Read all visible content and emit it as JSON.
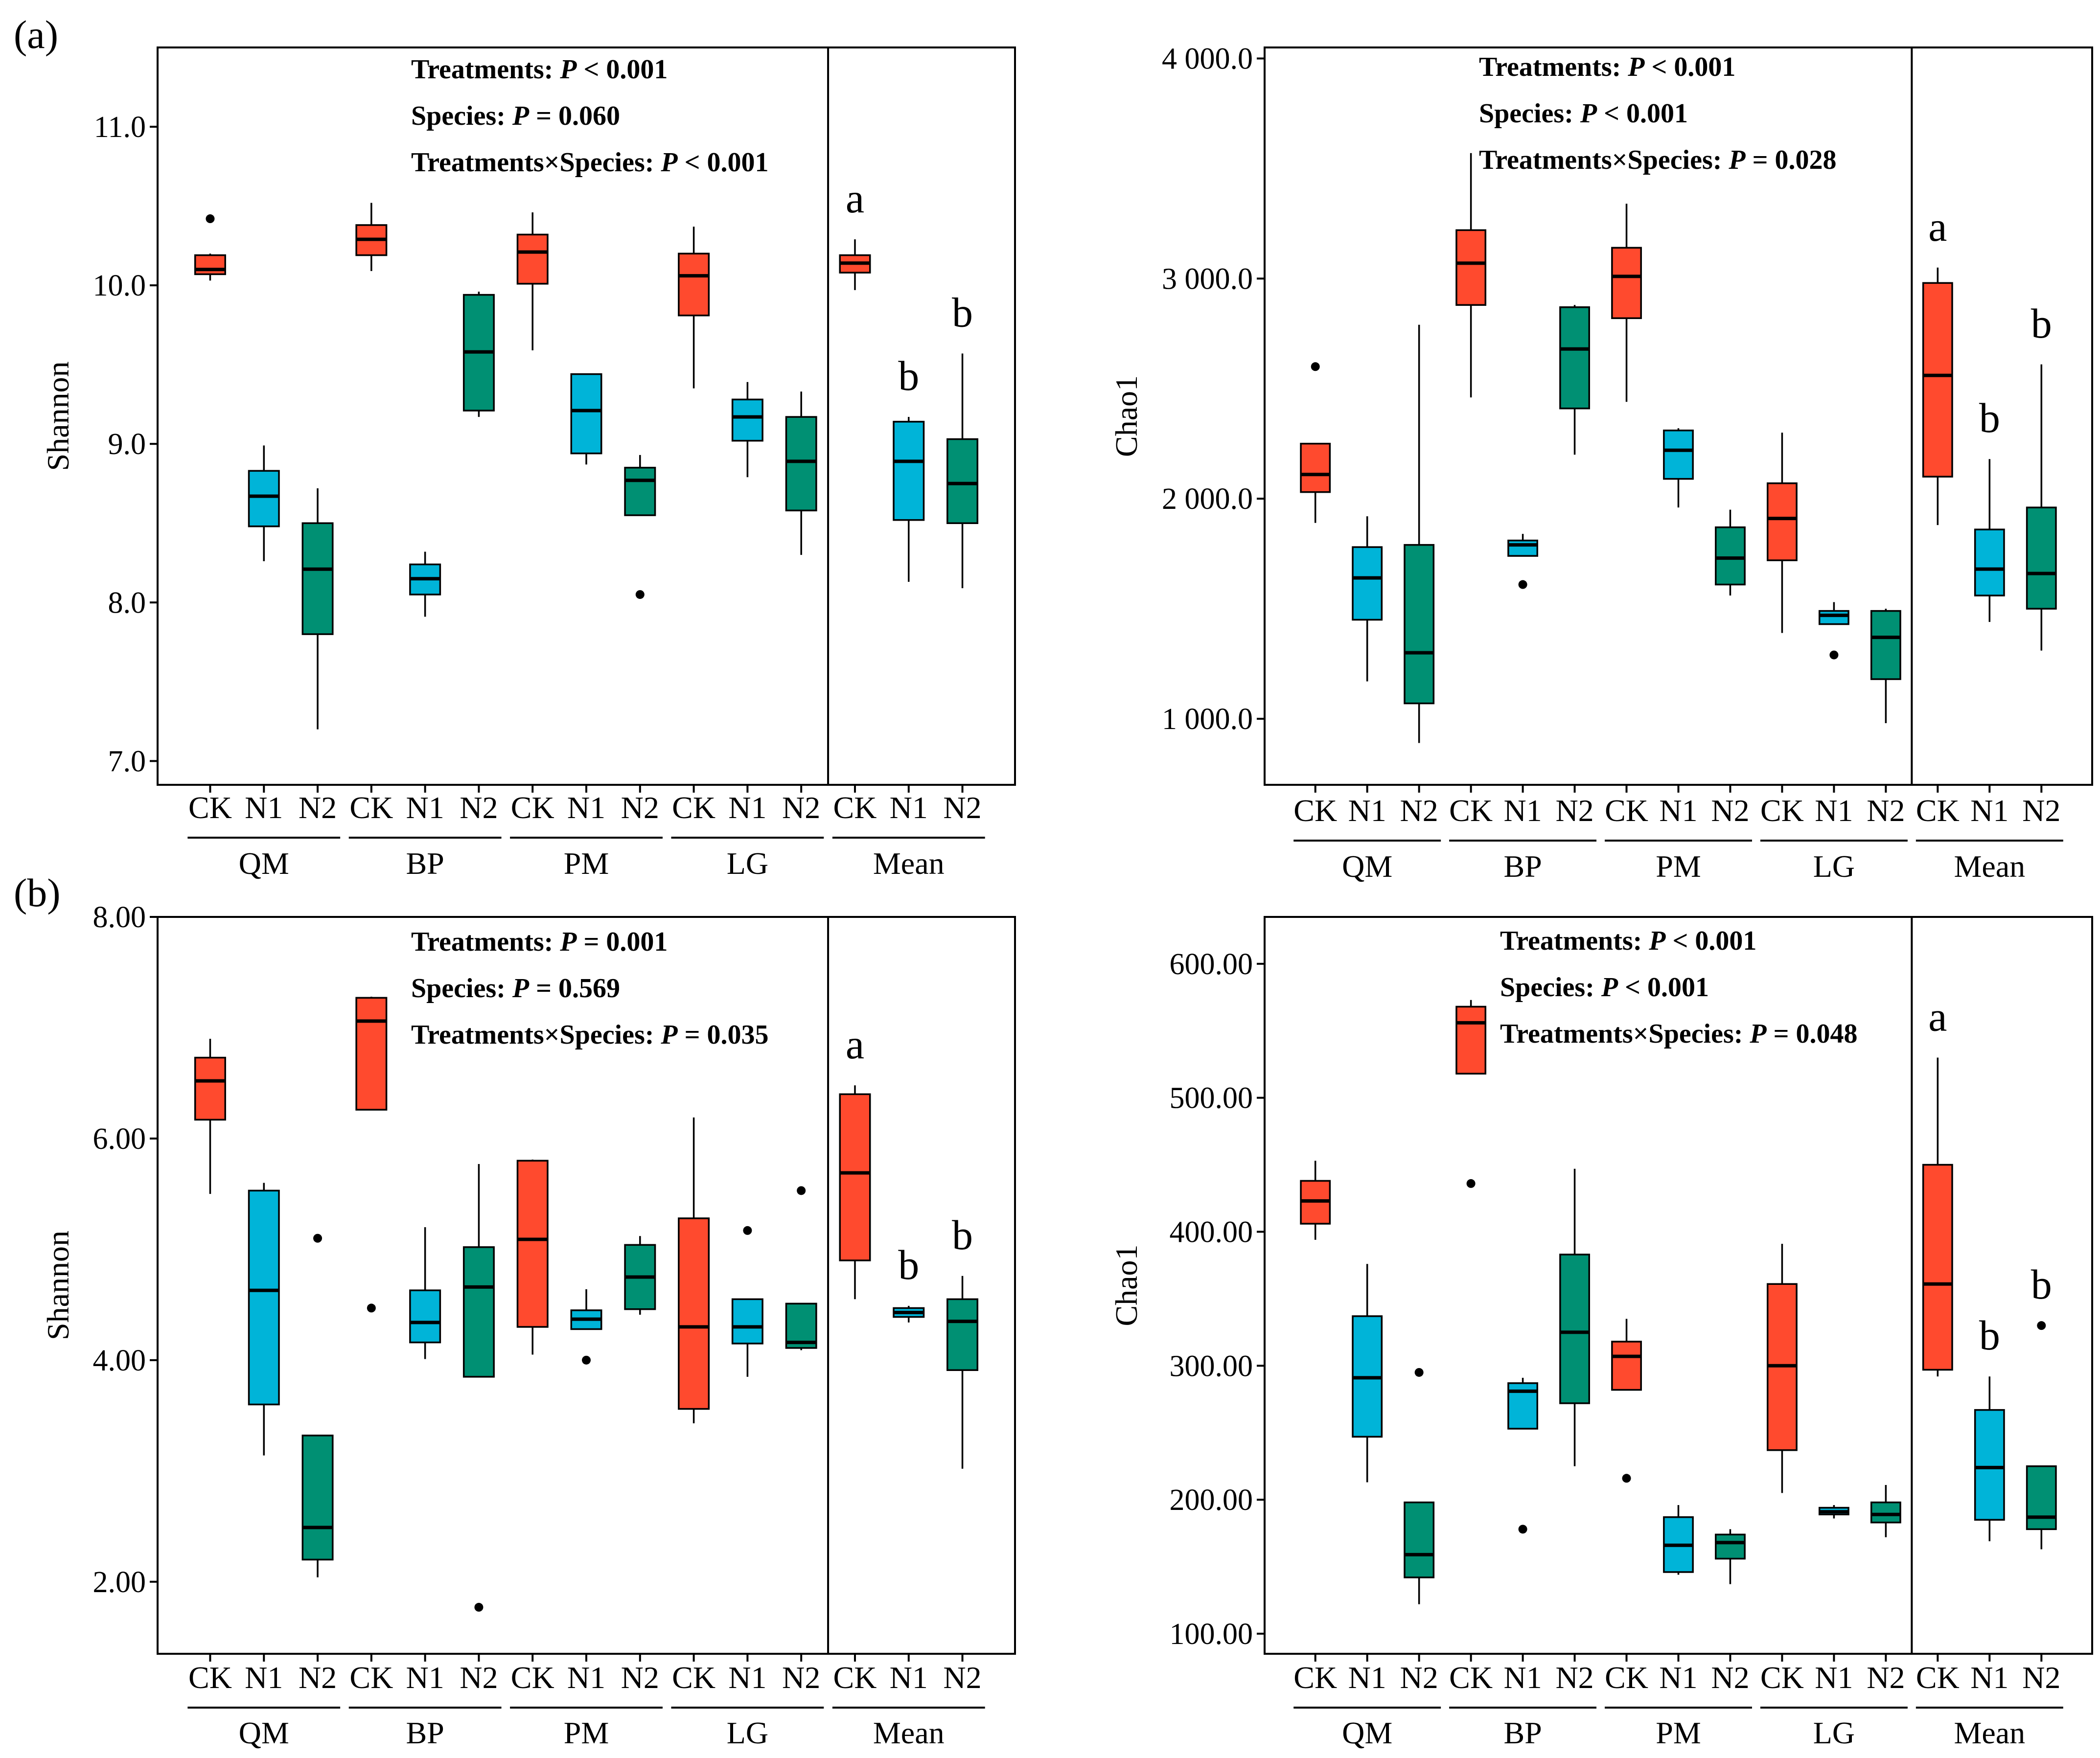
{
  "panel_labels": [
    "(a)",
    "(b)"
  ],
  "colors": {
    "CK": "#FF4A2E",
    "N1": "#00B4D8",
    "N2": "#009073"
  },
  "treatments": [
    "CK",
    "N1",
    "N2"
  ],
  "groups": [
    "QM",
    "BP",
    "PM",
    "LG",
    "Mean"
  ],
  "chart_data": [
    {
      "type": "box",
      "ylabel": "Shannon",
      "ylim": [
        6.85,
        11.5
      ],
      "yticks": [
        7.0,
        8.0,
        9.0,
        10.0,
        11.0
      ],
      "ytick_labels": [
        "7.0",
        "8.0",
        "9.0",
        "10.0",
        "11.0"
      ],
      "stats": [
        {
          "label": "Treatments: ",
          "p": "P",
          "value": " < 0.001"
        },
        {
          "label": "Species: ",
          "p": "P",
          "value": " = 0.060"
        },
        {
          "label": "Treatments×Species: ",
          "p": "P",
          "value": " < 0.001"
        }
      ],
      "boxes": [
        {
          "group": "QM",
          "treatment": "CK",
          "whisker_low": 10.03,
          "q1": 10.07,
          "median": 10.1,
          "q3": 10.19,
          "whisker_high": 10.2,
          "outliers": [
            10.42
          ]
        },
        {
          "group": "QM",
          "treatment": "N1",
          "whisker_low": 8.26,
          "q1": 8.48,
          "median": 8.67,
          "q3": 8.83,
          "whisker_high": 8.99,
          "outliers": []
        },
        {
          "group": "QM",
          "treatment": "N2",
          "whisker_low": 7.2,
          "q1": 7.8,
          "median": 8.21,
          "q3": 8.5,
          "whisker_high": 8.72,
          "outliers": []
        },
        {
          "group": "BP",
          "treatment": "CK",
          "whisker_low": 10.09,
          "q1": 10.19,
          "median": 10.29,
          "q3": 10.38,
          "whisker_high": 10.52,
          "outliers": []
        },
        {
          "group": "BP",
          "treatment": "N1",
          "whisker_low": 7.91,
          "q1": 8.05,
          "median": 8.15,
          "q3": 8.24,
          "whisker_high": 8.32,
          "outliers": []
        },
        {
          "group": "BP",
          "treatment": "N2",
          "whisker_low": 9.17,
          "q1": 9.21,
          "median": 9.58,
          "q3": 9.94,
          "whisker_high": 9.96,
          "outliers": []
        },
        {
          "group": "PM",
          "treatment": "CK",
          "whisker_low": 9.59,
          "q1": 10.01,
          "median": 10.21,
          "q3": 10.32,
          "whisker_high": 10.46,
          "outliers": []
        },
        {
          "group": "PM",
          "treatment": "N1",
          "whisker_low": 8.87,
          "q1": 8.94,
          "median": 9.21,
          "q3": 9.44,
          "whisker_high": 9.44,
          "outliers": []
        },
        {
          "group": "PM",
          "treatment": "N2",
          "whisker_low": 8.55,
          "q1": 8.55,
          "median": 8.77,
          "q3": 8.85,
          "whisker_high": 8.93,
          "outliers": [
            8.05
          ]
        },
        {
          "group": "LG",
          "treatment": "CK",
          "whisker_low": 9.35,
          "q1": 9.81,
          "median": 10.06,
          "q3": 10.2,
          "whisker_high": 10.37,
          "outliers": []
        },
        {
          "group": "LG",
          "treatment": "N1",
          "whisker_low": 8.79,
          "q1": 9.02,
          "median": 9.17,
          "q3": 9.28,
          "whisker_high": 9.39,
          "outliers": []
        },
        {
          "group": "LG",
          "treatment": "N2",
          "whisker_low": 8.3,
          "q1": 8.58,
          "median": 8.89,
          "q3": 9.17,
          "whisker_high": 9.33,
          "outliers": []
        },
        {
          "group": "Mean",
          "treatment": "CK",
          "whisker_low": 9.97,
          "q1": 10.08,
          "median": 10.14,
          "q3": 10.19,
          "whisker_high": 10.29,
          "outliers": []
        },
        {
          "group": "Mean",
          "treatment": "N1",
          "whisker_low": 8.13,
          "q1": 8.52,
          "median": 8.89,
          "q3": 9.14,
          "whisker_high": 9.17,
          "outliers": []
        },
        {
          "group": "Mean",
          "treatment": "N2",
          "whisker_low": 8.09,
          "q1": 8.5,
          "median": 8.75,
          "q3": 9.03,
          "whisker_high": 9.57,
          "outliers": []
        }
      ],
      "letters": [
        {
          "treatment": "CK",
          "text": "a"
        },
        {
          "treatment": "N1",
          "text": "b"
        },
        {
          "treatment": "N2",
          "text": "b"
        }
      ]
    },
    {
      "type": "box",
      "ylabel": "Chao1",
      "ylim": [
        700,
        4050
      ],
      "yticks": [
        1000,
        2000,
        3000,
        4000
      ],
      "ytick_labels": [
        "1 000.0",
        "2 000.0",
        "3 000.0",
        "4 000.0"
      ],
      "stats": [
        {
          "label": "Treatments: ",
          "p": "P",
          "value": " < 0.001"
        },
        {
          "label": "Species: ",
          "p": "P",
          "value": " < 0.001"
        },
        {
          "label": "Treatments×Species: ",
          "p": "P",
          "value": " = 0.028"
        }
      ],
      "boxes": [
        {
          "group": "QM",
          "treatment": "CK",
          "whisker_low": 1890,
          "q1": 2030,
          "median": 2110,
          "q3": 2250,
          "whisker_high": 2250,
          "outliers": [
            2600
          ]
        },
        {
          "group": "QM",
          "treatment": "N1",
          "whisker_low": 1170,
          "q1": 1450,
          "median": 1640,
          "q3": 1780,
          "whisker_high": 1920,
          "outliers": []
        },
        {
          "group": "QM",
          "treatment": "N2",
          "whisker_low": 890,
          "q1": 1070,
          "median": 1300,
          "q3": 1790,
          "whisker_high": 2790,
          "outliers": []
        },
        {
          "group": "BP",
          "treatment": "CK",
          "whisker_low": 2460,
          "q1": 2880,
          "median": 3070,
          "q3": 3220,
          "whisker_high": 3570,
          "outliers": []
        },
        {
          "group": "BP",
          "treatment": "N1",
          "whisker_low": 1740,
          "q1": 1740,
          "median": 1790,
          "q3": 1810,
          "whisker_high": 1840,
          "outliers": [
            1610
          ]
        },
        {
          "group": "BP",
          "treatment": "N2",
          "whisker_low": 2200,
          "q1": 2410,
          "median": 2680,
          "q3": 2870,
          "whisker_high": 2880,
          "outliers": []
        },
        {
          "group": "PM",
          "treatment": "CK",
          "whisker_low": 2440,
          "q1": 2820,
          "median": 3010,
          "q3": 3140,
          "whisker_high": 3340,
          "outliers": []
        },
        {
          "group": "PM",
          "treatment": "N1",
          "whisker_low": 1960,
          "q1": 2090,
          "median": 2220,
          "q3": 2310,
          "whisker_high": 2320,
          "outliers": []
        },
        {
          "group": "PM",
          "treatment": "N2",
          "whisker_low": 1560,
          "q1": 1610,
          "median": 1730,
          "q3": 1870,
          "whisker_high": 1950,
          "outliers": []
        },
        {
          "group": "LG",
          "treatment": "CK",
          "whisker_low": 1390,
          "q1": 1720,
          "median": 1910,
          "q3": 2070,
          "whisker_high": 2300,
          "outliers": []
        },
        {
          "group": "LG",
          "treatment": "N1",
          "whisker_low": 1430,
          "q1": 1430,
          "median": 1470,
          "q3": 1490,
          "whisker_high": 1530,
          "outliers": [
            1290
          ]
        },
        {
          "group": "LG",
          "treatment": "N2",
          "whisker_low": 980,
          "q1": 1180,
          "median": 1370,
          "q3": 1490,
          "whisker_high": 1500,
          "outliers": []
        },
        {
          "group": "Mean",
          "treatment": "CK",
          "whisker_low": 1880,
          "q1": 2100,
          "median": 2560,
          "q3": 2980,
          "whisker_high": 3050,
          "outliers": []
        },
        {
          "group": "Mean",
          "treatment": "N1",
          "whisker_low": 1440,
          "q1": 1560,
          "median": 1680,
          "q3": 1860,
          "whisker_high": 2180,
          "outliers": []
        },
        {
          "group": "Mean",
          "treatment": "N2",
          "whisker_low": 1310,
          "q1": 1500,
          "median": 1660,
          "q3": 1960,
          "whisker_high": 2610,
          "outliers": []
        }
      ],
      "letters": [
        {
          "treatment": "CK",
          "text": "a"
        },
        {
          "treatment": "N1",
          "text": "b"
        },
        {
          "treatment": "N2",
          "text": "b"
        }
      ]
    },
    {
      "type": "box",
      "ylabel": "Shannon",
      "ylim": [
        1.35,
        8.0
      ],
      "yticks": [
        2.0,
        4.0,
        6.0,
        8.0
      ],
      "ytick_labels": [
        "2.00",
        "4.00",
        "6.00",
        "8.00"
      ],
      "stats": [
        {
          "label": "Treatments: ",
          "p": "P",
          "value": " = 0.001"
        },
        {
          "label": "Species: ",
          "p": "P",
          "value": " = 0.569"
        },
        {
          "label": "Treatments×Species: ",
          "p": "P",
          "value": " = 0.035"
        }
      ],
      "boxes": [
        {
          "group": "QM",
          "treatment": "CK",
          "whisker_low": 5.5,
          "q1": 6.17,
          "median": 6.52,
          "q3": 6.73,
          "whisker_high": 6.9,
          "outliers": []
        },
        {
          "group": "QM",
          "treatment": "N1",
          "whisker_low": 3.14,
          "q1": 3.6,
          "median": 4.63,
          "q3": 5.53,
          "whisker_high": 5.6,
          "outliers": []
        },
        {
          "group": "QM",
          "treatment": "N2",
          "whisker_low": 2.04,
          "q1": 2.2,
          "median": 2.49,
          "q3": 3.32,
          "whisker_high": 3.32,
          "outliers": [
            5.1
          ]
        },
        {
          "group": "BP",
          "treatment": "CK",
          "whisker_low": 6.26,
          "q1": 6.26,
          "median": 7.06,
          "q3": 7.27,
          "whisker_high": 7.28,
          "outliers": [
            4.47
          ]
        },
        {
          "group": "BP",
          "treatment": "N1",
          "whisker_low": 4.01,
          "q1": 4.16,
          "median": 4.34,
          "q3": 4.63,
          "whisker_high": 5.2,
          "outliers": []
        },
        {
          "group": "BP",
          "treatment": "N2",
          "whisker_low": 3.85,
          "q1": 3.85,
          "median": 4.66,
          "q3": 5.02,
          "whisker_high": 5.77,
          "outliers": [
            1.77
          ]
        },
        {
          "group": "PM",
          "treatment": "CK",
          "whisker_low": 4.05,
          "q1": 4.3,
          "median": 5.09,
          "q3": 5.8,
          "whisker_high": 5.81,
          "outliers": []
        },
        {
          "group": "PM",
          "treatment": "N1",
          "whisker_low": 4.28,
          "q1": 4.28,
          "median": 4.37,
          "q3": 4.45,
          "whisker_high": 4.64,
          "outliers": [
            4.0
          ]
        },
        {
          "group": "PM",
          "treatment": "N2",
          "whisker_low": 4.41,
          "q1": 4.46,
          "median": 4.75,
          "q3": 5.04,
          "whisker_high": 5.12,
          "outliers": []
        },
        {
          "group": "LG",
          "treatment": "CK",
          "whisker_low": 3.43,
          "q1": 3.56,
          "median": 4.3,
          "q3": 5.28,
          "whisker_high": 6.19,
          "outliers": []
        },
        {
          "group": "LG",
          "treatment": "N1",
          "whisker_low": 3.85,
          "q1": 4.15,
          "median": 4.3,
          "q3": 4.55,
          "whisker_high": 4.55,
          "outliers": [
            5.17
          ]
        },
        {
          "group": "LG",
          "treatment": "N2",
          "whisker_low": 4.09,
          "q1": 4.11,
          "median": 4.16,
          "q3": 4.51,
          "whisker_high": 4.51,
          "outliers": [
            5.53
          ]
        },
        {
          "group": "Mean",
          "treatment": "CK",
          "whisker_low": 4.55,
          "q1": 4.9,
          "median": 5.69,
          "q3": 6.4,
          "whisker_high": 6.48,
          "outliers": []
        },
        {
          "group": "Mean",
          "treatment": "N1",
          "whisker_low": 4.34,
          "q1": 4.39,
          "median": 4.43,
          "q3": 4.47,
          "whisker_high": 4.49,
          "outliers": []
        },
        {
          "group": "Mean",
          "treatment": "N2",
          "whisker_low": 3.02,
          "q1": 3.91,
          "median": 4.35,
          "q3": 4.55,
          "whisker_high": 4.76,
          "outliers": []
        }
      ],
      "letters": [
        {
          "treatment": "CK",
          "text": "a"
        },
        {
          "treatment": "N1",
          "text": "b"
        },
        {
          "treatment": "N2",
          "text": "b"
        }
      ]
    },
    {
      "type": "box",
      "ylabel": "Chao1",
      "ylim": [
        85,
        635
      ],
      "yticks": [
        100,
        200,
        300,
        400,
        500,
        600
      ],
      "ytick_labels": [
        "100.00",
        "200.00",
        "300.00",
        "400.00",
        "500.00",
        "600.00"
      ],
      "stats": [
        {
          "label": "Treatments: ",
          "p": "P",
          "value": " < 0.001"
        },
        {
          "label": "Species: ",
          "p": "P",
          "value": " < 0.001"
        },
        {
          "label": "Treatments×Species: ",
          "p": "P",
          "value": " = 0.048"
        }
      ],
      "boxes": [
        {
          "group": "QM",
          "treatment": "CK",
          "whisker_low": 394,
          "q1": 406,
          "median": 423,
          "q3": 438,
          "whisker_high": 453,
          "outliers": []
        },
        {
          "group": "QM",
          "treatment": "N1",
          "whisker_low": 213,
          "q1": 247,
          "median": 291,
          "q3": 337,
          "whisker_high": 376,
          "outliers": []
        },
        {
          "group": "QM",
          "treatment": "N2",
          "whisker_low": 122,
          "q1": 142,
          "median": 159,
          "q3": 198,
          "whisker_high": 198,
          "outliers": [
            295
          ]
        },
        {
          "group": "BP",
          "treatment": "CK",
          "whisker_low": 518,
          "q1": 518,
          "median": 556,
          "q3": 568,
          "whisker_high": 573,
          "outliers": [
            436
          ]
        },
        {
          "group": "BP",
          "treatment": "N1",
          "whisker_low": 253,
          "q1": 253,
          "median": 281,
          "q3": 287,
          "whisker_high": 291,
          "outliers": [
            178
          ]
        },
        {
          "group": "BP",
          "treatment": "N2",
          "whisker_low": 225,
          "q1": 272,
          "median": 325,
          "q3": 383,
          "whisker_high": 447,
          "outliers": []
        },
        {
          "group": "PM",
          "treatment": "CK",
          "whisker_low": 282,
          "q1": 282,
          "median": 307,
          "q3": 318,
          "whisker_high": 335,
          "outliers": [
            216
          ]
        },
        {
          "group": "PM",
          "treatment": "N1",
          "whisker_low": 144,
          "q1": 146,
          "median": 166,
          "q3": 187,
          "whisker_high": 196,
          "outliers": []
        },
        {
          "group": "PM",
          "treatment": "N2",
          "whisker_low": 137,
          "q1": 156,
          "median": 168,
          "q3": 174,
          "whisker_high": 178,
          "outliers": []
        },
        {
          "group": "LG",
          "treatment": "CK",
          "whisker_low": 205,
          "q1": 237,
          "median": 300,
          "q3": 361,
          "whisker_high": 391,
          "outliers": []
        },
        {
          "group": "LG",
          "treatment": "N1",
          "whisker_low": 186,
          "q1": 189,
          "median": 191,
          "q3": 194,
          "whisker_high": 196,
          "outliers": []
        },
        {
          "group": "LG",
          "treatment": "N2",
          "whisker_low": 172,
          "q1": 183,
          "median": 189,
          "q3": 198,
          "whisker_high": 211,
          "outliers": []
        },
        {
          "group": "Mean",
          "treatment": "CK",
          "whisker_low": 292,
          "q1": 297,
          "median": 361,
          "q3": 450,
          "whisker_high": 530,
          "outliers": []
        },
        {
          "group": "Mean",
          "treatment": "N1",
          "whisker_low": 169,
          "q1": 185,
          "median": 224,
          "q3": 267,
          "whisker_high": 292,
          "outliers": []
        },
        {
          "group": "Mean",
          "treatment": "N2",
          "whisker_low": 163,
          "q1": 178,
          "median": 187,
          "q3": 225,
          "whisker_high": 225,
          "outliers": [
            330
          ]
        }
      ],
      "letters": [
        {
          "treatment": "CK",
          "text": "a"
        },
        {
          "treatment": "N1",
          "text": "b"
        },
        {
          "treatment": "N2",
          "text": "b"
        }
      ]
    }
  ]
}
